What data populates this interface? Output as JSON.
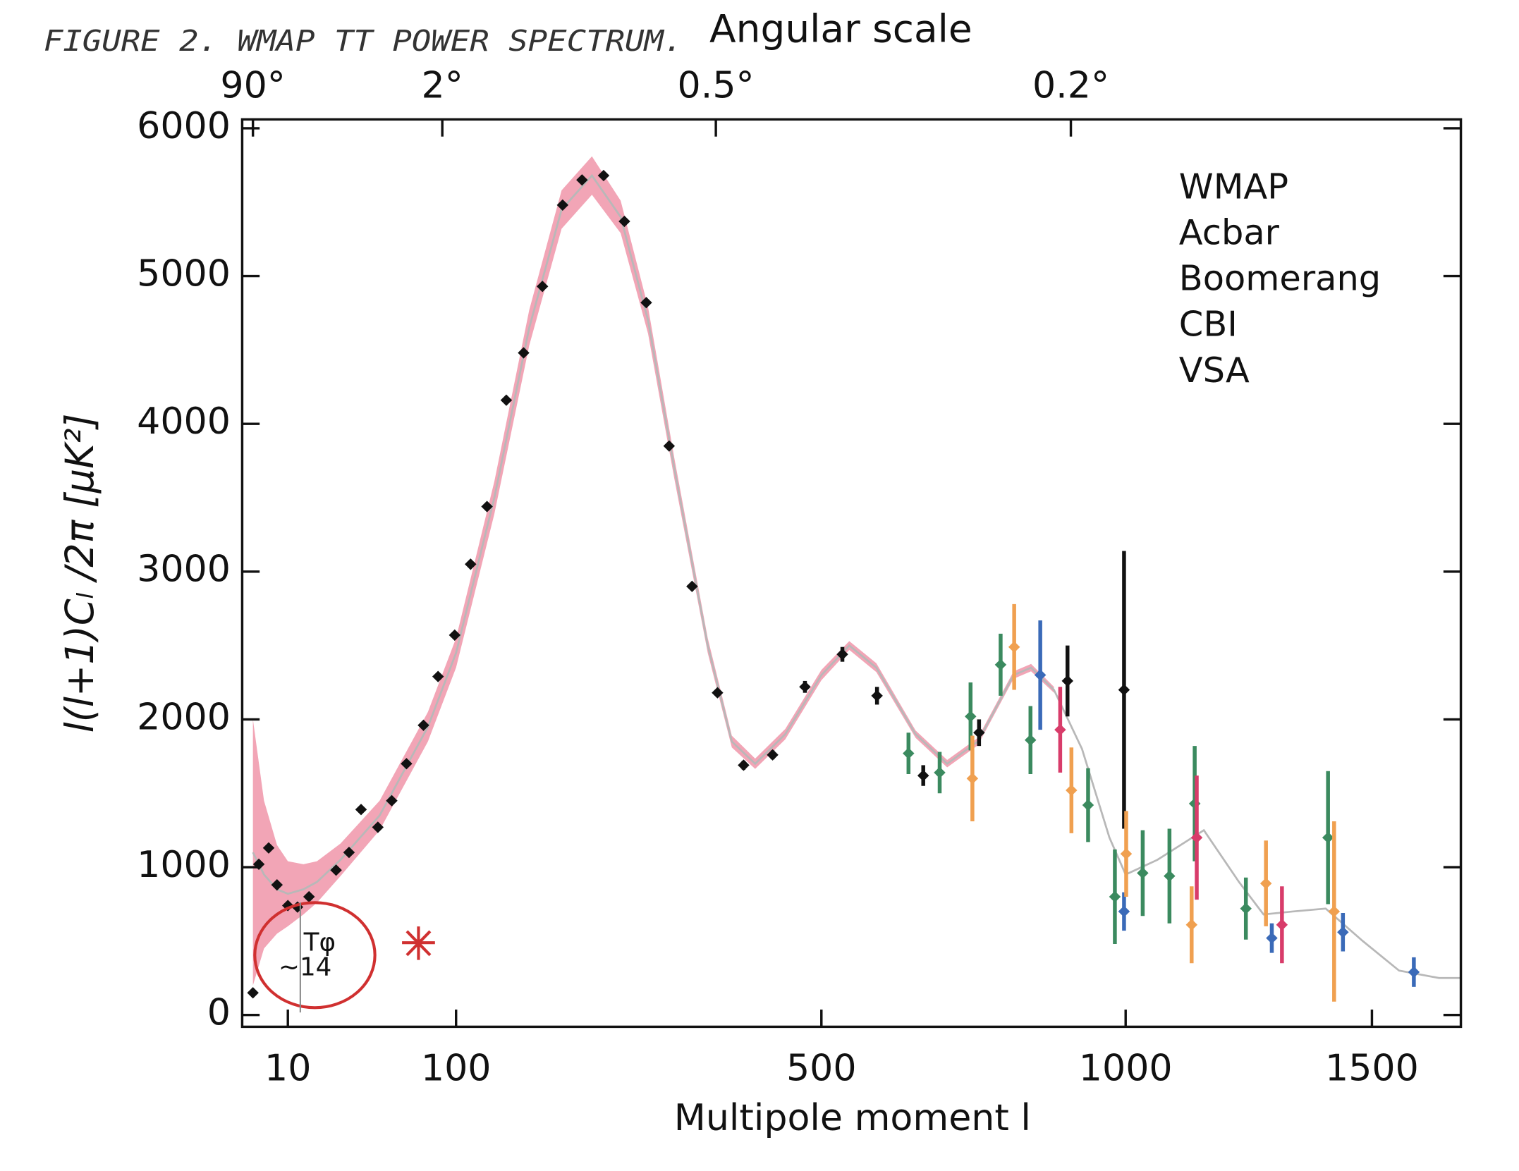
{
  "chart_data": {
    "type": "scatter",
    "handwritten_title": "FIGURE 2. WMAP TT POWER SPECTRUM.",
    "handwritten_note": [
      "Tφ",
      "~14"
    ],
    "title": "Angular scale",
    "xlabel": "Multipole moment l",
    "ylabel": "l(l+1)Cₗ /2π [μK²]",
    "xscale_power": 0.6,
    "xlim": [
      0.63,
      1700
    ],
    "ylim": [
      -80,
      6060
    ],
    "xticks": [
      10,
      100,
      500,
      1000,
      1500
    ],
    "x2ticks": [
      {
        "value": 2,
        "label": "90°"
      },
      {
        "value": 90,
        "label": "2°"
      },
      {
        "value": 360,
        "label": "0.5°"
      },
      {
        "value": 900,
        "label": "0.2°"
      }
    ],
    "yticks": [
      0,
      1000,
      2000,
      3000,
      4000,
      5000,
      6000
    ],
    "legend": "upper right",
    "model": {
      "line_color": "#b8b8b8",
      "band_color": "#f2a5b6",
      "x": [
        2,
        4,
        7,
        10,
        15,
        20,
        30,
        50,
        80,
        100,
        130,
        160,
        190,
        220,
        250,
        280,
        310,
        350,
        380,
        410,
        450,
        500,
        540,
        580,
        640,
        690,
        740,
        800,
        830,
        870,
        920,
        970,
        1000,
        1060,
        1150,
        1220,
        1270,
        1330,
        1400,
        1480,
        1560,
        1650,
        1700
      ],
      "values": [
        1100,
        950,
        850,
        820,
        850,
        900,
        1050,
        1350,
        1950,
        2450,
        3500,
        4650,
        5450,
        5680,
        5400,
        4700,
        3700,
        2500,
        1850,
        1700,
        1900,
        2300,
        2500,
        2350,
        1900,
        1700,
        1850,
        2300,
        2350,
        2200,
        1800,
        1200,
        950,
        1050,
        1250,
        900,
        680,
        700,
        720,
        500,
        300,
        250,
        250
      ],
      "band": [
        900,
        500,
        300,
        220,
        170,
        140,
        110,
        100,
        100,
        100,
        110,
        120,
        130,
        130,
        110,
        90,
        70,
        50,
        40,
        35,
        35,
        35,
        30,
        30,
        25,
        25,
        25,
        25,
        25,
        20,
        null,
        null,
        null,
        null,
        null,
        null,
        null,
        null,
        null,
        null,
        null,
        null,
        null
      ]
    },
    "series": [
      {
        "name": "WMAP",
        "color": "#111111",
        "x": [
          2,
          3,
          5,
          7,
          10,
          13,
          17,
          28,
          34,
          40,
          49,
          57,
          66,
          77,
          87,
          99,
          111,
          124,
          140,
          155,
          172,
          191,
          210,
          232,
          254,
          278,
          304,
          331,
          362,
          395,
          433,
          477,
          530,
          581,
          652,
          742,
          894,
          997
        ],
        "values": [
          150,
          1020,
          1130,
          880,
          740,
          730,
          800,
          980,
          1100,
          1390,
          1270,
          1450,
          1700,
          1960,
          2290,
          2570,
          3050,
          3440,
          4160,
          4480,
          4930,
          5480,
          5650,
          5680,
          5370,
          4820,
          3850,
          2900,
          2180,
          1690,
          1760,
          2220,
          2440,
          2160,
          1620,
          1910,
          2260,
          2200
        ],
        "errors": [
          20,
          20,
          20,
          20,
          20,
          20,
          20,
          20,
          20,
          20,
          20,
          20,
          20,
          20,
          20,
          20,
          20,
          20,
          20,
          20,
          20,
          20,
          20,
          20,
          20,
          20,
          20,
          20,
          20,
          30,
          30,
          40,
          50,
          60,
          70,
          90,
          240,
          940
        ]
      },
      {
        "name": "Acbar",
        "color": "#3a6ab8",
        "x": [
          846,
          997,
          1287,
          1437,
          1593
        ],
        "values": [
          2300,
          700,
          520,
          560,
          290
        ],
        "errors": [
          370,
          130,
          100,
          130,
          100
        ]
      },
      {
        "name": "Boomerang",
        "color": "#3b8a5f",
        "x": [
          629,
          678,
          728,
          778,
          829,
          931,
          980,
          1032,
          1083,
          1132,
          1234,
          1405
        ],
        "values": [
          1770,
          1640,
          2020,
          2370,
          1860,
          1420,
          800,
          960,
          940,
          1430,
          720,
          1200
        ],
        "errors": [
          140,
          140,
          230,
          210,
          230,
          250,
          320,
          290,
          320,
          390,
          210,
          450
        ]
      },
      {
        "name": "CBI",
        "color": "#d83c6a",
        "x": [
          881,
          1136,
          1308
        ],
        "values": [
          1930,
          1200,
          610
        ],
        "errors": [
          290,
          420,
          260
        ]
      },
      {
        "name": "VSA",
        "color": "#f0a050",
        "x": [
          731,
          801,
          901,
          1001,
          1126,
          1275,
          1418
        ],
        "values": [
          1600,
          2490,
          1520,
          1090,
          610,
          890,
          700
        ],
        "errors": [
          290,
          290,
          290,
          290,
          260,
          290,
          610
        ]
      }
    ]
  }
}
